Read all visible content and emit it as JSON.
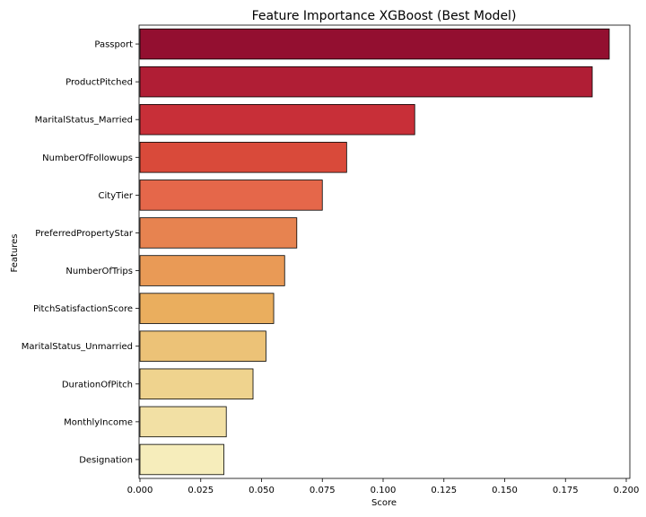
{
  "chart_data": {
    "type": "bar",
    "orientation": "horizontal",
    "title": "Feature Importance XGBoost (Best Model)",
    "xlabel": "Score",
    "ylabel": "Features",
    "xlim": [
      0,
      0.2
    ],
    "xticks": [
      "0.000",
      "0.025",
      "0.050",
      "0.075",
      "0.100",
      "0.125",
      "0.150",
      "0.175",
      "0.200"
    ],
    "grid": false,
    "categories": [
      "Passport",
      "ProductPitched",
      "MaritalStatus_Married",
      "NumberOfFollowups",
      "CityTier",
      "PreferredPropertyStar",
      "NumberOfTrips",
      "PitchSatisfactionScore",
      "MaritalStatus_Unmarried",
      "DurationOfPitch",
      "MonthlyIncome",
      "Designation"
    ],
    "values": [
      0.193,
      0.186,
      0.113,
      0.085,
      0.075,
      0.0645,
      0.0595,
      0.055,
      0.0518,
      0.0465,
      0.0355,
      0.0345
    ],
    "colors": [
      "#930f30",
      "#b01e35",
      "#c82f38",
      "#d94a3a",
      "#e5674a",
      "#e78350",
      "#e99a56",
      "#eaae5e",
      "#ecc277",
      "#efd38e",
      "#f2e0a4",
      "#f6edbb"
    ]
  }
}
